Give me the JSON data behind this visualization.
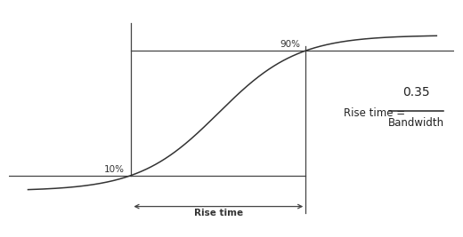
{
  "background_color": "#ffffff",
  "sigmoid_color": "#333333",
  "line_color": "#444444",
  "text_color": "#333333",
  "formula_color": "#222222",
  "pct_10": 0.1,
  "pct_90": 0.9,
  "label_10": "10%",
  "label_90": "90%",
  "label_rise": "Rise time",
  "formula_left": "Rise time = ",
  "formula_numerator": "0.35",
  "formula_denominator": "Bandwidth",
  "xlim": [
    -0.7,
    1.85
  ],
  "ylim": [
    -0.22,
    1.18
  ],
  "x_left_vline": 0.0,
  "x_right_vline": 1.0,
  "figsize": [
    5.2,
    2.67
  ],
  "dpi": 100
}
